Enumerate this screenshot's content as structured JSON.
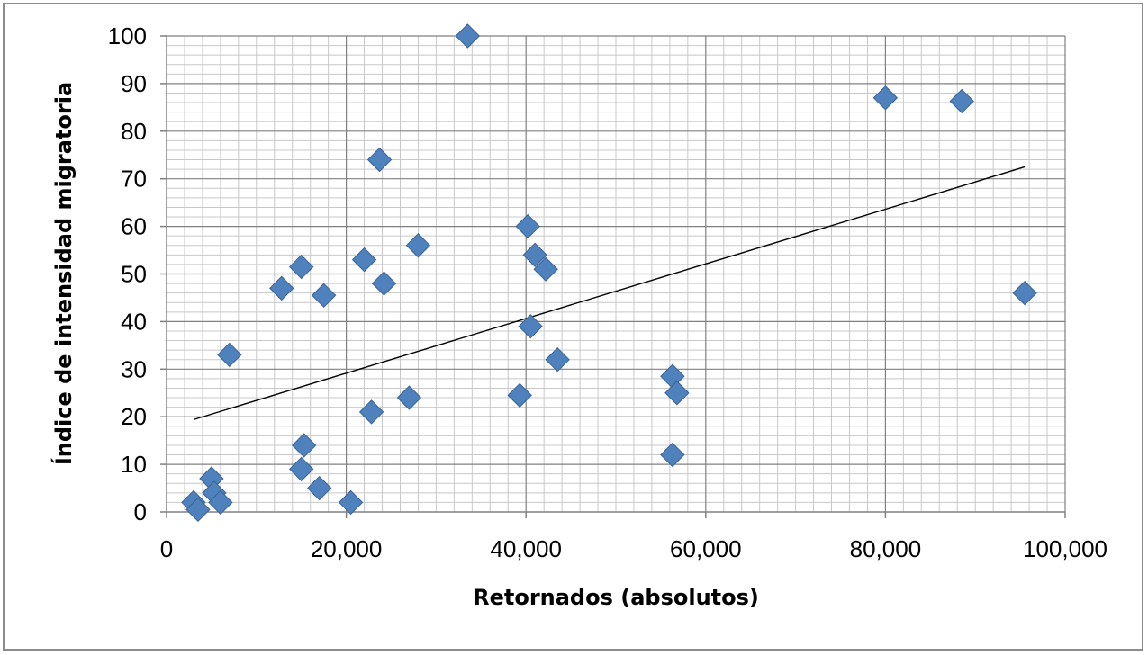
{
  "chart_data": {
    "type": "scatter",
    "title": "",
    "xlabel": "Retornados (absolutos)",
    "ylabel": "Índice de intensidad migratoria",
    "xlim": [
      0,
      100000
    ],
    "ylim": [
      0,
      100
    ],
    "x_ticks": [
      0,
      20000,
      40000,
      60000,
      80000,
      100000
    ],
    "x_tick_labels": [
      "0",
      "20,000",
      "40,000",
      "60,000",
      "80,000",
      "100,000"
    ],
    "y_ticks": [
      0,
      10,
      20,
      30,
      40,
      50,
      60,
      70,
      80,
      90,
      100
    ],
    "y_tick_labels": [
      "0",
      "10",
      "20",
      "30",
      "40",
      "50",
      "60",
      "70",
      "80",
      "90",
      "100"
    ],
    "grid": true,
    "legend": "none",
    "marker": "diamond",
    "marker_color": "#4f81bd",
    "trendline": {
      "type": "linear",
      "color": "#000000",
      "x": [
        3000,
        95500
      ],
      "y": [
        19.4,
        72.5
      ]
    },
    "points": [
      {
        "x": 3000,
        "y": 2
      },
      {
        "x": 3500,
        "y": 0.5
      },
      {
        "x": 5000,
        "y": 7
      },
      {
        "x": 5300,
        "y": 4
      },
      {
        "x": 6000,
        "y": 2
      },
      {
        "x": 7000,
        "y": 33
      },
      {
        "x": 12800,
        "y": 47
      },
      {
        "x": 15000,
        "y": 51.5
      },
      {
        "x": 15300,
        "y": 14
      },
      {
        "x": 15000,
        "y": 9
      },
      {
        "x": 17000,
        "y": 5
      },
      {
        "x": 17500,
        "y": 45.5
      },
      {
        "x": 20500,
        "y": 2
      },
      {
        "x": 22000,
        "y": 53
      },
      {
        "x": 22800,
        "y": 21
      },
      {
        "x": 23700,
        "y": 74
      },
      {
        "x": 24200,
        "y": 48
      },
      {
        "x": 27000,
        "y": 24
      },
      {
        "x": 28000,
        "y": 56
      },
      {
        "x": 33500,
        "y": 100
      },
      {
        "x": 39300,
        "y": 24.5
      },
      {
        "x": 40200,
        "y": 60
      },
      {
        "x": 40500,
        "y": 39
      },
      {
        "x": 41000,
        "y": 54
      },
      {
        "x": 42200,
        "y": 51
      },
      {
        "x": 43500,
        "y": 32
      },
      {
        "x": 56300,
        "y": 28.5
      },
      {
        "x": 56300,
        "y": 12
      },
      {
        "x": 56800,
        "y": 25
      },
      {
        "x": 80000,
        "y": 87
      },
      {
        "x": 88500,
        "y": 86.3
      },
      {
        "x": 95500,
        "y": 46
      }
    ]
  }
}
